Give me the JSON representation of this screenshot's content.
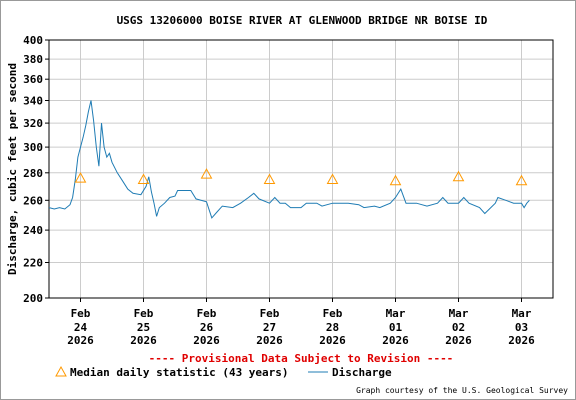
{
  "chart_data": {
    "type": "line",
    "title": "USGS 13206000 BOISE RIVER AT GLENWOOD BRIDGE NR BOISE ID",
    "ylabel": "Discharge, cubic feet per second",
    "xlabel": "",
    "ylim": [
      200,
      400
    ],
    "y_scale": "log",
    "y_ticks": [
      200,
      220,
      240,
      260,
      280,
      300,
      320,
      340,
      360,
      380,
      400
    ],
    "x_range": [
      "2026-02-23T12:00",
      "2026-03-03T12:00"
    ],
    "x_ticks": [
      {
        "month": "Feb",
        "day": "24",
        "year": "2026",
        "t": "2026-02-24T00:00"
      },
      {
        "month": "Feb",
        "day": "25",
        "year": "2026",
        "t": "2026-02-25T00:00"
      },
      {
        "month": "Feb",
        "day": "26",
        "year": "2026",
        "t": "2026-02-26T00:00"
      },
      {
        "month": "Feb",
        "day": "27",
        "year": "2026",
        "t": "2026-02-27T00:00"
      },
      {
        "month": "Feb",
        "day": "28",
        "year": "2026",
        "t": "2026-02-28T00:00"
      },
      {
        "month": "Mar",
        "day": "01",
        "year": "2026",
        "t": "2026-03-01T00:00"
      },
      {
        "month": "Mar",
        "day": "02",
        "year": "2026",
        "t": "2026-03-02T00:00"
      },
      {
        "month": "Mar",
        "day": "03",
        "year": "2026",
        "t": "2026-03-03T00:00"
      }
    ],
    "grid": true,
    "series": [
      {
        "name": "Discharge",
        "color": "#1f7cb4",
        "points": [
          [
            "2026-02-23T12:00",
            255
          ],
          [
            "2026-02-23T14:00",
            254
          ],
          [
            "2026-02-23T16:00",
            255
          ],
          [
            "2026-02-23T18:00",
            254
          ],
          [
            "2026-02-23T20:00",
            257
          ],
          [
            "2026-02-23T21:00",
            262
          ],
          [
            "2026-02-23T22:00",
            275
          ],
          [
            "2026-02-23T23:00",
            292
          ],
          [
            "2026-02-24T00:00",
            300
          ],
          [
            "2026-02-24T01:00",
            308
          ],
          [
            "2026-02-24T02:00",
            318
          ],
          [
            "2026-02-24T03:00",
            330
          ],
          [
            "2026-02-24T04:00",
            340
          ],
          [
            "2026-02-24T05:00",
            322
          ],
          [
            "2026-02-24T06:00",
            300
          ],
          [
            "2026-02-24T07:00",
            285
          ],
          [
            "2026-02-24T08:00",
            320
          ],
          [
            "2026-02-24T09:00",
            300
          ],
          [
            "2026-02-24T10:00",
            292
          ],
          [
            "2026-02-24T11:00",
            295
          ],
          [
            "2026-02-24T12:00",
            288
          ],
          [
            "2026-02-24T14:00",
            280
          ],
          [
            "2026-02-24T16:00",
            274
          ],
          [
            "2026-02-24T18:00",
            268
          ],
          [
            "2026-02-24T20:00",
            265
          ],
          [
            "2026-02-24T23:00",
            264
          ],
          [
            "2026-02-25T01:00",
            270
          ],
          [
            "2026-02-25T02:00",
            277
          ],
          [
            "2026-02-25T03:00",
            266
          ],
          [
            "2026-02-25T04:00",
            258
          ],
          [
            "2026-02-25T05:00",
            249
          ],
          [
            "2026-02-25T06:00",
            255
          ],
          [
            "2026-02-25T08:00",
            258
          ],
          [
            "2026-02-25T10:00",
            262
          ],
          [
            "2026-02-25T12:00",
            263
          ],
          [
            "2026-02-25T13:00",
            267
          ],
          [
            "2026-02-25T18:00",
            267
          ],
          [
            "2026-02-25T20:00",
            261
          ],
          [
            "2026-02-26T00:00",
            259
          ],
          [
            "2026-02-26T02:00",
            248
          ],
          [
            "2026-02-26T04:00",
            252
          ],
          [
            "2026-02-26T06:00",
            256
          ],
          [
            "2026-02-26T10:00",
            255
          ],
          [
            "2026-02-26T13:00",
            258
          ],
          [
            "2026-02-26T16:00",
            262
          ],
          [
            "2026-02-26T18:00",
            265
          ],
          [
            "2026-02-26T20:00",
            261
          ],
          [
            "2026-02-27T00:00",
            258
          ],
          [
            "2026-02-27T02:00",
            262
          ],
          [
            "2026-02-27T04:00",
            258
          ],
          [
            "2026-02-27T06:00",
            258
          ],
          [
            "2026-02-27T08:00",
            255
          ],
          [
            "2026-02-27T12:00",
            255
          ],
          [
            "2026-02-27T14:00",
            258
          ],
          [
            "2026-02-27T18:00",
            258
          ],
          [
            "2026-02-27T20:00",
            256
          ],
          [
            "2026-02-28T00:00",
            258
          ],
          [
            "2026-02-28T06:00",
            258
          ],
          [
            "2026-02-28T10:00",
            257
          ],
          [
            "2026-02-28T12:00",
            255
          ],
          [
            "2026-02-28T16:00",
            256
          ],
          [
            "2026-02-28T18:00",
            255
          ],
          [
            "2026-02-28T22:00",
            258
          ],
          [
            "2026-03-01T00:00",
            262
          ],
          [
            "2026-03-01T02:00",
            268
          ],
          [
            "2026-03-01T04:00",
            258
          ],
          [
            "2026-03-01T08:00",
            258
          ],
          [
            "2026-03-01T12:00",
            256
          ],
          [
            "2026-03-01T16:00",
            258
          ],
          [
            "2026-03-01T18:00",
            262
          ],
          [
            "2026-03-01T20:00",
            258
          ],
          [
            "2026-03-02T00:00",
            258
          ],
          [
            "2026-03-02T02:00",
            262
          ],
          [
            "2026-03-02T04:00",
            258
          ],
          [
            "2026-03-02T08:00",
            255
          ],
          [
            "2026-03-02T10:00",
            251
          ],
          [
            "2026-03-02T14:00",
            258
          ],
          [
            "2026-03-02T15:00",
            262
          ],
          [
            "2026-03-02T18:00",
            260
          ],
          [
            "2026-03-02T21:00",
            258
          ],
          [
            "2026-03-03T00:00",
            258
          ],
          [
            "2026-03-03T01:00",
            255
          ],
          [
            "2026-03-03T02:00",
            258
          ],
          [
            "2026-03-03T03:00",
            260
          ]
        ]
      },
      {
        "name": "Median daily statistic (43 years)",
        "color": "#ff9900",
        "marker": "triangle",
        "points": [
          [
            "2026-02-24T00:00",
            276
          ],
          [
            "2026-02-25T00:00",
            275
          ],
          [
            "2026-02-26T00:00",
            279
          ],
          [
            "2026-02-27T00:00",
            275
          ],
          [
            "2026-02-28T00:00",
            275
          ],
          [
            "2026-03-01T00:00",
            274
          ],
          [
            "2026-03-02T00:00",
            277
          ],
          [
            "2026-03-03T00:00",
            274
          ]
        ]
      }
    ],
    "provisional_notice": "---- Provisional Data Subject to Revision ----",
    "legend": [
      {
        "label": "Median daily statistic (43 years)",
        "kind": "triangle",
        "color": "#ff9900"
      },
      {
        "label": "Discharge",
        "kind": "line",
        "color": "#1f7cb4"
      }
    ],
    "credit": "Graph courtesy of the U.S. Geological Survey"
  }
}
